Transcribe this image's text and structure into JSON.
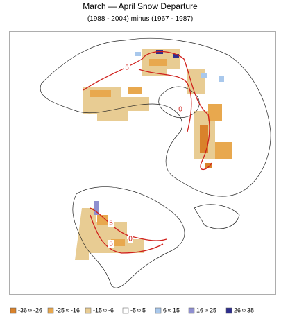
{
  "header": {
    "title": "March — April Snow Departure",
    "subtitle": "(1988 - 2004)  minus  (1967 - 1987)"
  },
  "contours": [
    {
      "label": 5
    },
    {
      "label": 0
    },
    {
      "label": 5
    },
    {
      "label": 0
    },
    {
      "label": 5
    }
  ],
  "legend": {
    "joiner": "to",
    "items": [
      {
        "low": -36,
        "high": -26,
        "color": "#d9822b"
      },
      {
        "low": -25,
        "high": -16,
        "color": "#e8a84e"
      },
      {
        "low": -15,
        "high": -6,
        "color": "#e8cc93"
      },
      {
        "low": -5,
        "high": 5,
        "color": "#ffffff"
      },
      {
        "low": 6,
        "high": 15,
        "color": "#a9c8ec"
      },
      {
        "low": 16,
        "high": 25,
        "color": "#8f8fd0"
      },
      {
        "low": 26,
        "high": 38,
        "color": "#2e2e8e"
      }
    ]
  }
}
